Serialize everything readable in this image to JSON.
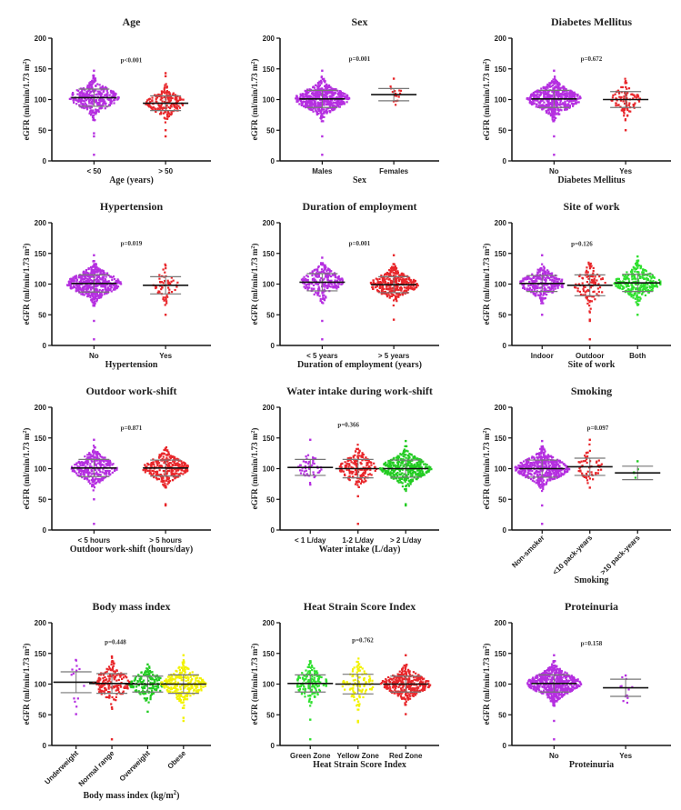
{
  "common": {
    "ylabel_pre": "eGFR (ml/min/1.73 m",
    "ylabel_sup": "2",
    "ylabel_post": ")",
    "ylim": [
      0,
      200
    ],
    "yticks": [
      "0",
      "50",
      "100",
      "150",
      "200"
    ]
  },
  "chart_data": [
    {
      "type": "scatter",
      "title": "Age",
      "xlabel": "Age (years)",
      "p_value": "p<0.001",
      "groups": [
        {
          "name": "< 50",
          "color": "#b52fe0",
          "mean": 103,
          "sd": 14,
          "n": 350,
          "outliers": [
            10,
            40,
            45,
            147
          ]
        },
        {
          "name": "> 50",
          "color": "#e8262a",
          "mean": 94,
          "sd": 12,
          "n": 200,
          "outliers": [
            40,
            50,
            138,
            143
          ]
        }
      ]
    },
    {
      "type": "scatter",
      "title": "Sex",
      "xlabel": "Sex",
      "p_value": "p=0.001",
      "groups": [
        {
          "name": "Males",
          "color": "#b52fe0",
          "mean": 101,
          "sd": 14,
          "n": 550,
          "outliers": [
            10,
            40,
            147
          ]
        },
        {
          "name": "Females",
          "color": "#e8262a",
          "mean": 108,
          "sd": 10,
          "n": 15,
          "outliers": [
            134
          ]
        }
      ]
    },
    {
      "type": "scatter",
      "title": "Diabetes Mellitus",
      "xlabel": "Diabetes Mellitus",
      "p_value": "p=0.672",
      "groups": [
        {
          "name": "No",
          "color": "#b52fe0",
          "mean": 101,
          "sd": 14,
          "n": 500,
          "outliers": [
            10,
            40,
            147
          ]
        },
        {
          "name": "Yes",
          "color": "#e8262a",
          "mean": 100,
          "sd": 13,
          "n": 100,
          "outliers": [
            50,
            130
          ]
        }
      ]
    },
    {
      "type": "scatter",
      "title": "Hypertension",
      "xlabel": "Hypertension",
      "p_value": "p=0.019",
      "groups": [
        {
          "name": "No",
          "color": "#b52fe0",
          "mean": 101,
          "sd": 14,
          "n": 520,
          "outliers": [
            10,
            40,
            147
          ]
        },
        {
          "name": "Yes",
          "color": "#e8262a",
          "mean": 98,
          "sd": 14,
          "n": 60,
          "outliers": [
            50,
            130
          ]
        }
      ]
    },
    {
      "type": "scatter",
      "title": "Duration of employment",
      "xlabel": "Duration of employment (years)",
      "p_value": "p=0.001",
      "groups": [
        {
          "name": "< 5 years",
          "color": "#b52fe0",
          "mean": 103,
          "sd": 14,
          "n": 250,
          "outliers": [
            10,
            40,
            143
          ]
        },
        {
          "name": "> 5 years",
          "color": "#e8262a",
          "mean": 99,
          "sd": 13,
          "n": 330,
          "outliers": [
            42,
            147
          ]
        }
      ]
    },
    {
      "type": "scatter",
      "title": "Site of work",
      "xlabel": "Site of work",
      "p_value": "p=0.126",
      "groups": [
        {
          "name": "Indoor",
          "color": "#b52fe0",
          "mean": 101,
          "sd": 13,
          "n": 280,
          "outliers": [
            50,
            147
          ]
        },
        {
          "name": "Outdoor",
          "color": "#e8262a",
          "mean": 98,
          "sd": 17,
          "n": 110,
          "outliers": [
            10,
            40,
            42,
            132
          ]
        },
        {
          "name": "Both",
          "color": "#2fe02f",
          "mean": 102,
          "sd": 14,
          "n": 300,
          "outliers": [
            50,
            145
          ]
        }
      ]
    },
    {
      "type": "scatter",
      "title": "Outdoor work-shift",
      "xlabel": "Outdoor work-shift (hours/day)",
      "p_value": "p=0.871",
      "groups": [
        {
          "name": "< 5 hours",
          "color": "#b52fe0",
          "mean": 101,
          "sd": 14,
          "n": 300,
          "outliers": [
            10,
            50,
            147
          ]
        },
        {
          "name": "> 5 hours",
          "color": "#e8262a",
          "mean": 101,
          "sd": 13,
          "n": 300,
          "outliers": [
            40,
            42,
            132
          ]
        }
      ]
    },
    {
      "type": "scatter",
      "title": "Water intake during work-shift",
      "xlabel": "Water intake (L/day)",
      "p_value": "p=0.366",
      "groups": [
        {
          "name": "< 1 L/day",
          "color": "#b52fe0",
          "mean": 102,
          "sd": 13,
          "n": 50,
          "outliers": [
            74,
            147
          ]
        },
        {
          "name": "1-2 L/day",
          "color": "#e8262a",
          "mean": 100,
          "sd": 15,
          "n": 180,
          "outliers": [
            10,
            55,
            132
          ]
        },
        {
          "name": "> 2 L/day",
          "color": "#22cc22",
          "mean": 100,
          "sd": 14,
          "n": 380,
          "outliers": [
            40,
            42,
            145
          ]
        }
      ]
    },
    {
      "type": "scatter",
      "title": "Smoking",
      "xlabel": "Smoking",
      "p_value": "p=0.097",
      "groups": [
        {
          "name": "Non-smoker",
          "color": "#b52fe0",
          "mean": 100,
          "sd": 14,
          "n": 500,
          "outliers": [
            10,
            40,
            145
          ]
        },
        {
          "name": "<10 pack-years",
          "color": "#e8262a",
          "mean": 103,
          "sd": 14,
          "n": 60,
          "outliers": [
            69,
            147
          ]
        },
        {
          "name": ">10 pack-years",
          "color": "#22cc22",
          "mean": 93,
          "sd": 11,
          "n": 5,
          "outliers": [
            112
          ]
        }
      ]
    },
    {
      "type": "scatter",
      "title": "Body mass index",
      "xlabel_pre": "Body mass index (kg/m",
      "xlabel_sup": "2",
      "xlabel_post": ")",
      "p_value": "p=0.448",
      "groups": [
        {
          "name": "Underweight",
          "color": "#b52fe0",
          "mean": 103,
          "sd": 17,
          "n": 13,
          "outliers": [
            51
          ]
        },
        {
          "name": "Normal range",
          "color": "#e8262a",
          "mean": 101,
          "sd": 16,
          "n": 180,
          "outliers": [
            10,
            62,
            145
          ]
        },
        {
          "name": "Overweight",
          "color": "#22cc22",
          "mean": 100,
          "sd": 13,
          "n": 160,
          "outliers": [
            55,
            132
          ]
        },
        {
          "name": "Obese",
          "color": "#f2f200",
          "mean": 100,
          "sd": 15,
          "n": 280,
          "outliers": [
            40,
            45,
            147
          ]
        }
      ]
    },
    {
      "type": "scatter",
      "title": "Heat Strain Score Index",
      "xlabel": "Heat Strain Score Index",
      "p_value": "p=0.762",
      "groups": [
        {
          "name": "Green Zone",
          "color": "#2fe02f",
          "mean": 101,
          "sd": 14,
          "n": 150,
          "outliers": [
            10,
            42,
            134
          ]
        },
        {
          "name": "Yellow Zone",
          "color": "#f2f200",
          "mean": 100,
          "sd": 16,
          "n": 110,
          "outliers": [
            38,
            40,
            130
          ]
        },
        {
          "name": "Red Zone",
          "color": "#e8262a",
          "mean": 100,
          "sd": 13,
          "n": 350,
          "outliers": [
            51,
            147
          ]
        }
      ]
    },
    {
      "type": "scatter",
      "title": "Proteinuria",
      "xlabel": "Proteinuria",
      "p_value": "p=0.158",
      "groups": [
        {
          "name": "No",
          "color": "#b52fe0",
          "mean": 101,
          "sd": 14,
          "n": 600,
          "outliers": [
            10,
            40,
            147
          ]
        },
        {
          "name": "Yes",
          "color": "#b52fe0",
          "mean": 94,
          "sd": 14,
          "n": 10,
          "outliers": [
            80,
            114
          ]
        }
      ]
    }
  ]
}
